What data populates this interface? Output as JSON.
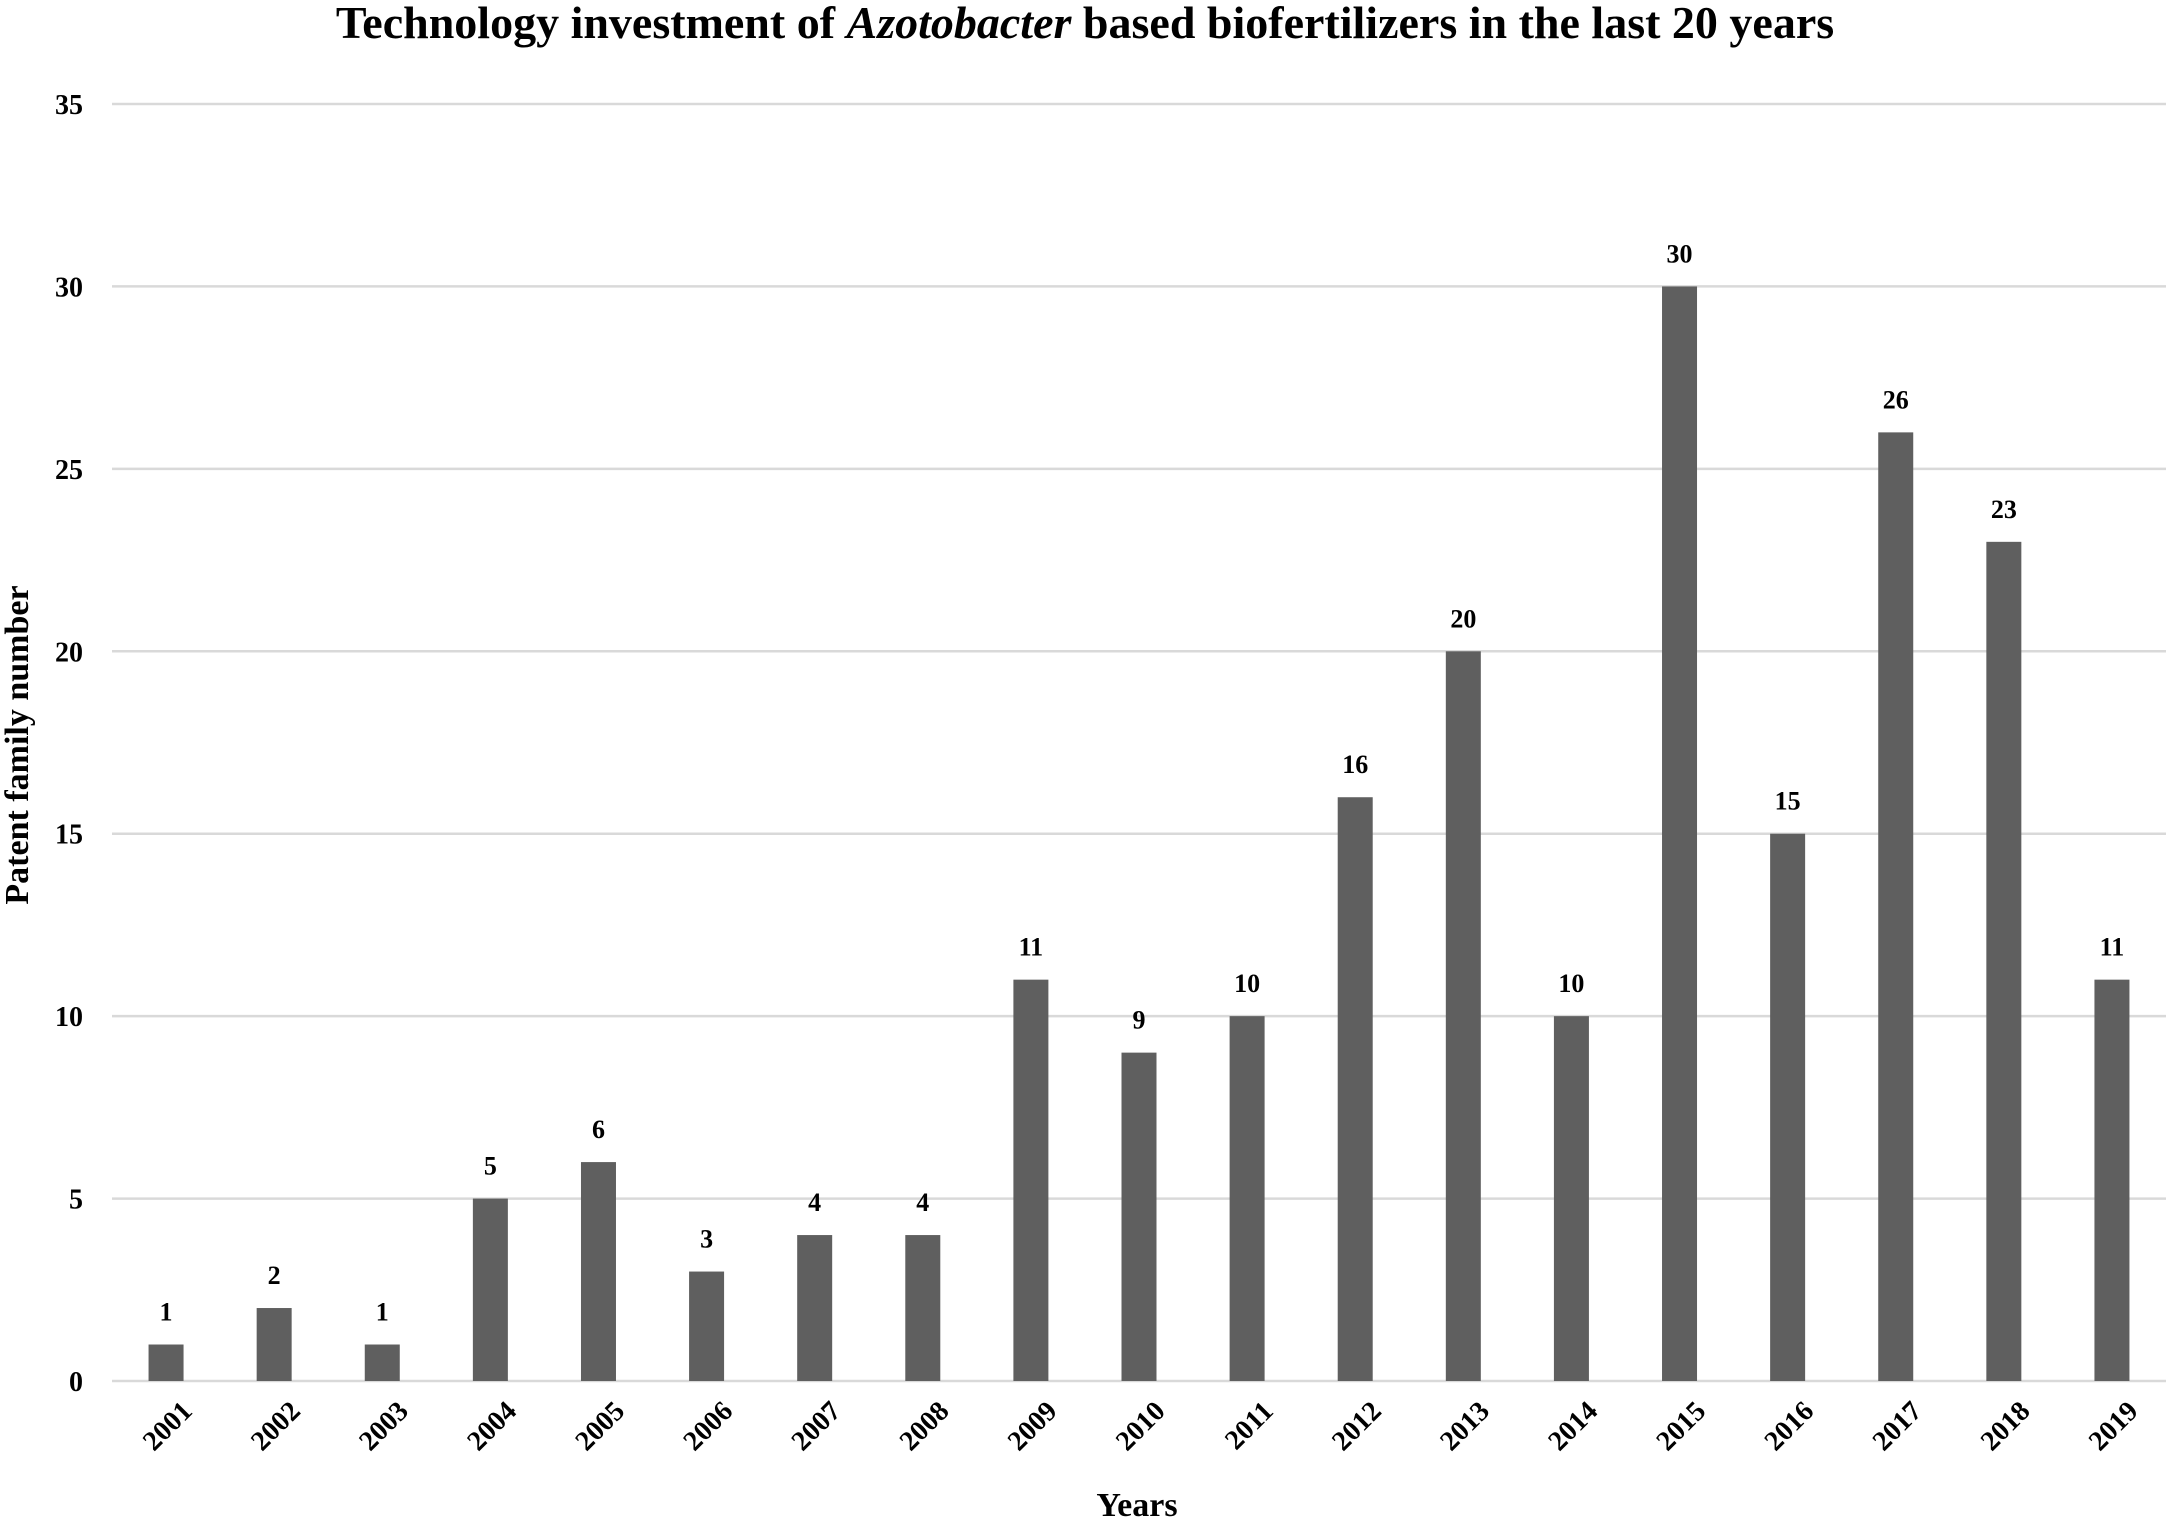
{
  "chart_data": {
    "type": "bar",
    "title_prefix": "Technology investment of ",
    "title_italic": "Azotobacter",
    "title_suffix": " based biofertilizers in the last 20 years",
    "xlabel": "Years",
    "ylabel": "Patent family number",
    "ylim": [
      0,
      35
    ],
    "yticks": [
      0,
      5,
      10,
      15,
      20,
      25,
      30,
      35
    ],
    "grid": true,
    "bar_color": "#5f5f5f",
    "grid_color": "#d9d9d9",
    "categories": [
      "2001",
      "2002",
      "2003",
      "2004",
      "2005",
      "2006",
      "2007",
      "2008",
      "2009",
      "2010",
      "2011",
      "2012",
      "2013",
      "2014",
      "2015",
      "2016",
      "2017",
      "2018",
      "2019"
    ],
    "values": [
      1,
      2,
      1,
      5,
      6,
      3,
      4,
      4,
      11,
      9,
      10,
      16,
      20,
      10,
      30,
      15,
      26,
      23,
      11
    ],
    "data_labels": [
      "1",
      "2",
      "1",
      "5",
      "6",
      "3",
      "4",
      "4",
      "11",
      "9",
      "10",
      "16",
      "20",
      "10",
      "30",
      "15",
      "26",
      "23",
      "11"
    ]
  }
}
